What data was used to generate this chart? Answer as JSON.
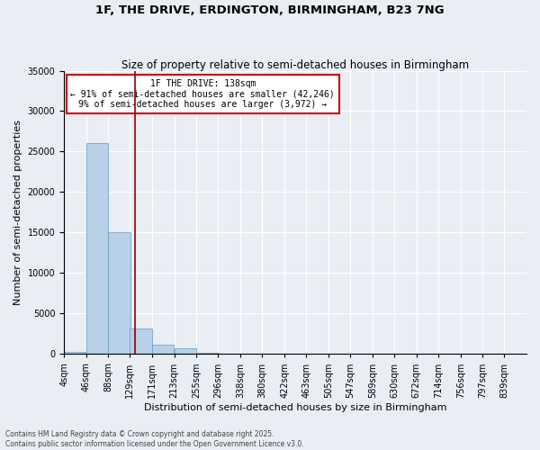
{
  "title": "1F, THE DRIVE, ERDINGTON, BIRMINGHAM, B23 7NG",
  "subtitle": "Size of property relative to semi-detached houses in Birmingham",
  "xlabel": "Distribution of semi-detached houses by size in Birmingham",
  "ylabel": "Number of semi-detached properties",
  "footnote": "Contains HM Land Registry data © Crown copyright and database right 2025.\nContains public sector information licensed under the Open Government Licence v3.0.",
  "bin_labels": [
    "4sqm",
    "46sqm",
    "88sqm",
    "129sqm",
    "171sqm",
    "213sqm",
    "255sqm",
    "296sqm",
    "338sqm",
    "380sqm",
    "422sqm",
    "463sqm",
    "505sqm",
    "547sqm",
    "589sqm",
    "630sqm",
    "672sqm",
    "714sqm",
    "756sqm",
    "797sqm",
    "839sqm"
  ],
  "bin_edges": [
    4,
    46,
    88,
    129,
    171,
    213,
    255,
    296,
    338,
    380,
    422,
    463,
    505,
    547,
    589,
    630,
    672,
    714,
    756,
    797,
    839
  ],
  "bar_heights": [
    300,
    26100,
    15000,
    3200,
    1200,
    700,
    200,
    80,
    50,
    30,
    20,
    15,
    10,
    8,
    5,
    4,
    3,
    2,
    2,
    1,
    1
  ],
  "bar_color": "#b8d0e8",
  "bar_edge_color": "#6699bb",
  "property_size": 138,
  "property_label": "1F THE DRIVE: 138sqm",
  "annotation_line1": "← 91% of semi-detached houses are smaller (42,246)",
  "annotation_line2": "9% of semi-detached houses are larger (3,972) →",
  "vline_color": "#8b0000",
  "annotation_box_color": "#ffffff",
  "annotation_box_edge": "#cc0000",
  "ylim": [
    0,
    35000
  ],
  "yticks": [
    0,
    5000,
    10000,
    15000,
    20000,
    25000,
    30000,
    35000
  ],
  "background_color": "#e8eef4",
  "grid_color": "#ffffff",
  "title_fontsize": 9.5,
  "subtitle_fontsize": 8.5,
  "axis_label_fontsize": 8,
  "tick_fontsize": 7,
  "annotation_fontsize": 7,
  "footnote_fontsize": 5.5
}
